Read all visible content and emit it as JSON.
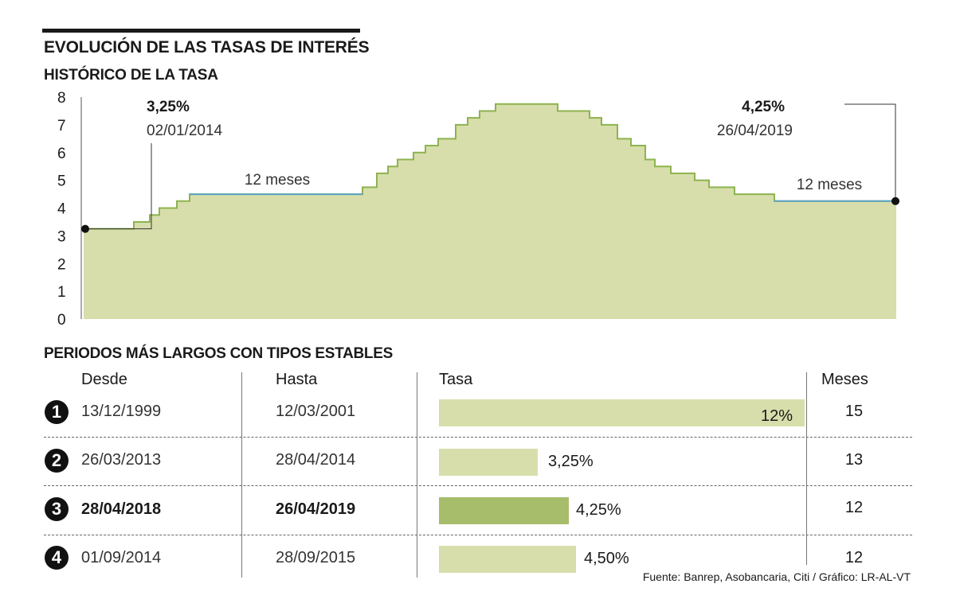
{
  "header": {
    "title": "EVOLUCIÓN DE LAS TASAS DE INTERÉS",
    "subtitle": "HISTÓRICO DE LA TASA"
  },
  "chart_data": {
    "type": "area",
    "title": "HISTÓRICO DE LA TASA",
    "ylim": [
      0,
      8
    ],
    "yticks": [
      "0",
      "1",
      "2",
      "3",
      "4",
      "5",
      "6",
      "7",
      "8"
    ],
    "grid": false,
    "step_values": [
      3.25,
      3.5,
      3.75,
      4.0,
      4.25,
      4.5,
      4.75,
      5.25,
      5.5,
      5.75,
      6.0,
      6.25,
      6.5,
      7.0,
      7.25,
      7.5,
      7.75,
      7.5,
      7.25,
      7.0,
      6.5,
      6.25,
      5.75,
      5.5,
      5.25,
      5.0,
      4.75,
      4.5,
      4.25
    ],
    "annotations": {
      "start": {
        "value": "3,25%",
        "date": "02/01/2014"
      },
      "end": {
        "value": "4,25%",
        "date": "26/04/2019"
      },
      "period1": "12 meses",
      "period2": "12 meses"
    }
  },
  "table": {
    "section_title": "PERIODOS MÁS LARGOS CON TIPOS ESTABLES",
    "headers": {
      "desde": "Desde",
      "hasta": "Hasta",
      "tasa": "Tasa",
      "meses": "Meses"
    },
    "rows": [
      {
        "num": "1",
        "desde": "13/12/1999",
        "hasta": "12/03/2001",
        "tasa_label": "12%",
        "tasa_value": 12,
        "meses": "15",
        "highlight": false
      },
      {
        "num": "2",
        "desde": "26/03/2013",
        "hasta": "28/04/2014",
        "tasa_label": "3,25%",
        "tasa_value": 3.25,
        "meses": "13",
        "highlight": false
      },
      {
        "num": "3",
        "desde": "28/04/2018",
        "hasta": "26/04/2019",
        "tasa_label": "4,25%",
        "tasa_value": 4.25,
        "meses": "12",
        "highlight": true
      },
      {
        "num": "4",
        "desde": "01/09/2014",
        "hasta": "28/09/2015",
        "tasa_label": "4,50%",
        "tasa_value": 4.5,
        "meses": "12",
        "highlight": false
      }
    ]
  },
  "source": "Fuente: Banrep, Asobancaria, Citi / Gráfico: LR-AL-VT",
  "colors": {
    "area_fill": "#d7deab",
    "area_stroke": "#8db34f",
    "stable_line": "#5aa3c7",
    "bar": "#d7deab",
    "bar_highlight": "#a7bd6c"
  }
}
